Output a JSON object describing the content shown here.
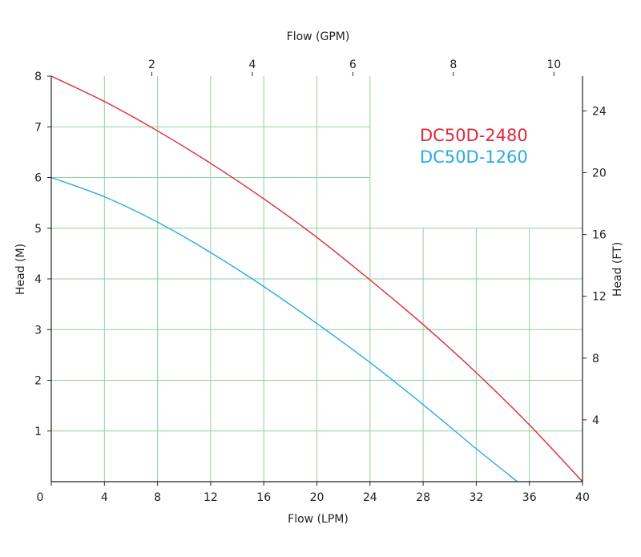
{
  "chart_data": {
    "type": "line",
    "title": "",
    "xlabel": "Flow (LPM)",
    "x2label": "Flow (GPM)",
    "ylabel": "Head (M)",
    "y2label": "Head (FT)",
    "xlim": [
      0,
      40
    ],
    "ylim": [
      0,
      8
    ],
    "x2lim": [
      0,
      10.57
    ],
    "y2lim": [
      0,
      26.25
    ],
    "x_ticks": [
      "0",
      "4",
      "8",
      "12",
      "16",
      "20",
      "24",
      "28",
      "32",
      "36",
      "40"
    ],
    "y_ticks": [
      "1",
      "2",
      "3",
      "4",
      "5",
      "6",
      "7",
      "8"
    ],
    "x2_ticks": [
      "2",
      "4",
      "6",
      "8",
      "10"
    ],
    "y2_ticks": [
      "4",
      "8",
      "12",
      "16",
      "20",
      "24"
    ],
    "grid": true,
    "legend_position": "top-right",
    "series": [
      {
        "name": "DC50D-2480",
        "color": "#e0283a",
        "points": [
          [
            0,
            8.0
          ],
          [
            4,
            7.5
          ],
          [
            8,
            6.92
          ],
          [
            12,
            6.28
          ],
          [
            16,
            5.58
          ],
          [
            20,
            4.82
          ],
          [
            24,
            3.98
          ],
          [
            28,
            3.1
          ],
          [
            32,
            2.15
          ],
          [
            36,
            1.12
          ],
          [
            40,
            0.0
          ]
        ]
      },
      {
        "name": "DC50D-1260",
        "color": "#29abe2",
        "points": [
          [
            0,
            6.0
          ],
          [
            4,
            5.62
          ],
          [
            8,
            5.12
          ],
          [
            12,
            4.52
          ],
          [
            16,
            3.85
          ],
          [
            20,
            3.12
          ],
          [
            24,
            2.35
          ],
          [
            28,
            1.52
          ],
          [
            32,
            0.65
          ],
          [
            35.1,
            0.0
          ]
        ]
      }
    ]
  }
}
